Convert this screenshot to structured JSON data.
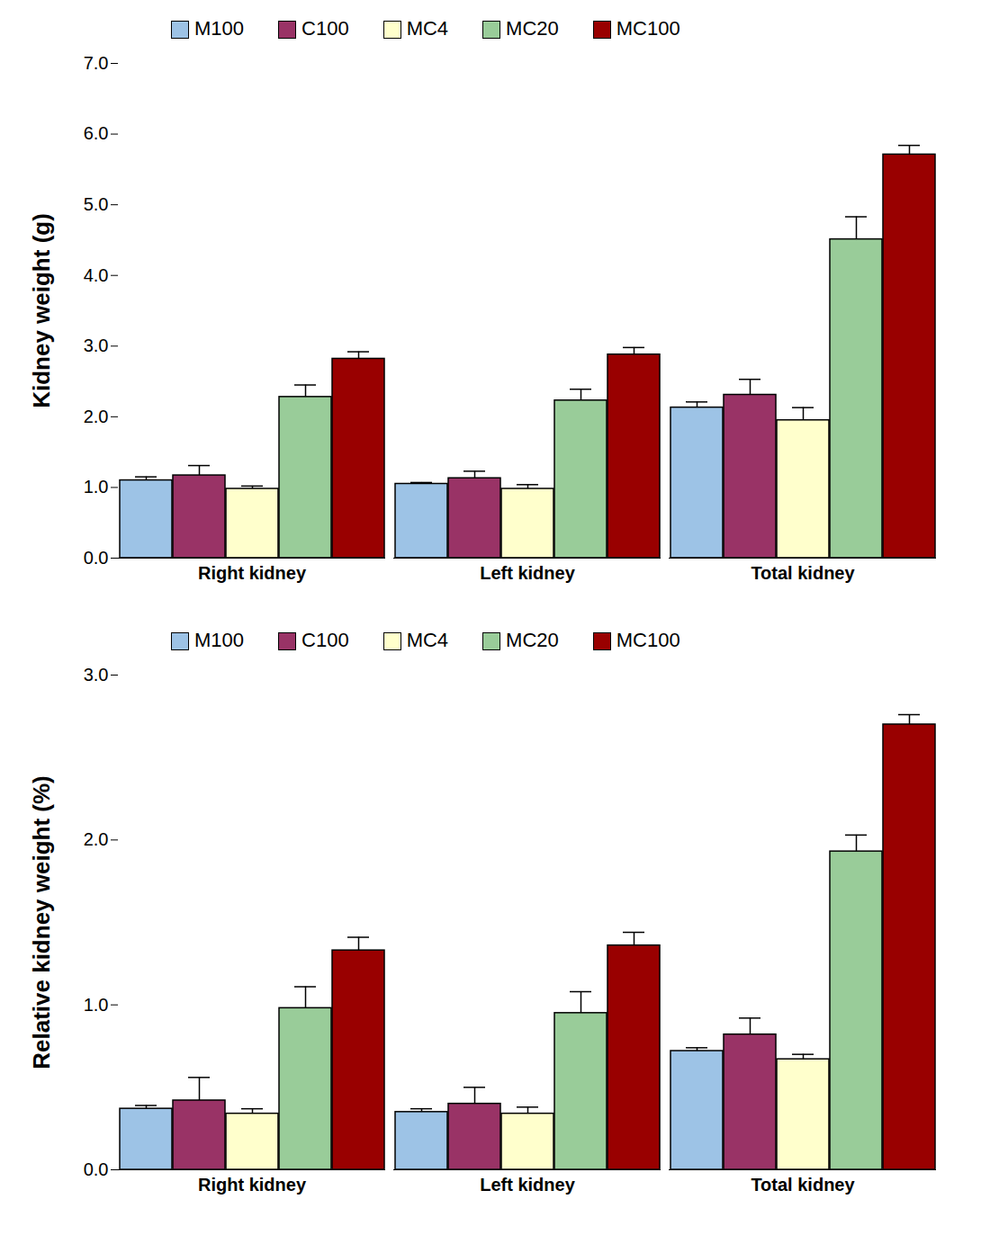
{
  "chart_data": [
    {
      "type": "bar",
      "ylabel": "Kidney weight (g)",
      "categories": [
        "Right kidney",
        "Left kidney",
        "Total kidney"
      ],
      "ylim": [
        0,
        7
      ],
      "yticks": [
        0,
        1,
        2,
        3,
        4,
        5,
        6,
        7
      ],
      "legend": "top",
      "series": [
        {
          "name": "M100",
          "color": "#9dc3e6",
          "values": [
            1.1,
            1.05,
            2.13
          ],
          "errors": [
            0.05,
            0.02,
            0.08
          ]
        },
        {
          "name": "C100",
          "color": "#993366",
          "values": [
            1.17,
            1.13,
            2.31
          ],
          "errors": [
            0.14,
            0.1,
            0.22
          ]
        },
        {
          "name": "MC4",
          "color": "#ffffcc",
          "values": [
            0.98,
            0.98,
            1.95
          ],
          "errors": [
            0.04,
            0.06,
            0.18
          ]
        },
        {
          "name": "MC20",
          "color": "#99cc99",
          "values": [
            2.28,
            2.23,
            4.51
          ],
          "errors": [
            0.17,
            0.16,
            0.32
          ]
        },
        {
          "name": "MC100",
          "color": "#990000",
          "values": [
            2.82,
            2.88,
            5.71
          ],
          "errors": [
            0.1,
            0.1,
            0.13
          ]
        }
      ]
    },
    {
      "type": "bar",
      "ylabel": "Relative kidney weight (%)",
      "categories": [
        "Right kidney",
        "Left kidney",
        "Total kidney"
      ],
      "ylim": [
        0,
        3
      ],
      "yticks": [
        0,
        1,
        2,
        3
      ],
      "legend": "top",
      "series": [
        {
          "name": "M100",
          "color": "#9dc3e6",
          "values": [
            0.37,
            0.35,
            0.72
          ],
          "errors": [
            0.02,
            0.02,
            0.02
          ]
        },
        {
          "name": "C100",
          "color": "#993366",
          "values": [
            0.42,
            0.4,
            0.82
          ],
          "errors": [
            0.14,
            0.1,
            0.1
          ]
        },
        {
          "name": "MC4",
          "color": "#ffffcc",
          "values": [
            0.34,
            0.34,
            0.67
          ],
          "errors": [
            0.03,
            0.04,
            0.03
          ]
        },
        {
          "name": "MC20",
          "color": "#99cc99",
          "values": [
            0.98,
            0.95,
            1.93
          ],
          "errors": [
            0.13,
            0.13,
            0.1
          ]
        },
        {
          "name": "MC100",
          "color": "#990000",
          "values": [
            1.33,
            1.36,
            2.7
          ],
          "errors": [
            0.08,
            0.08,
            0.06
          ]
        }
      ]
    }
  ]
}
